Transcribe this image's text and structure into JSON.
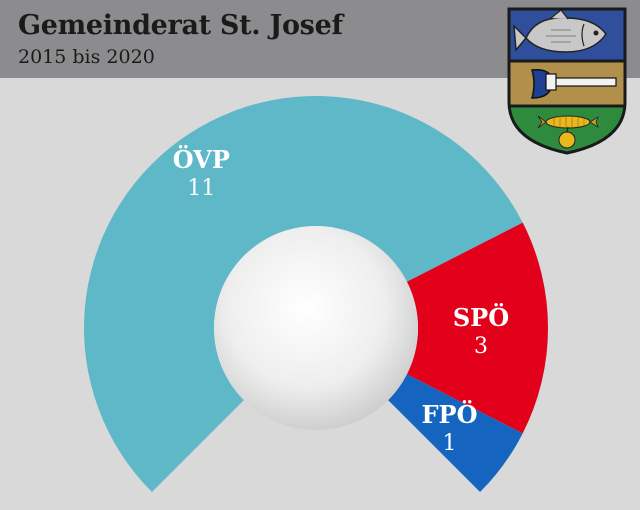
{
  "header": {
    "title": "Gemeinderat St. Josef",
    "subtitle": "2015 bis 2020"
  },
  "colors": {
    "background": "#d9d9d9",
    "header": "#8c8c8e",
    "ovp": "#5eb8c8",
    "spo": "#e3001b",
    "fpo": "#1565c0"
  },
  "crest": {
    "icons": [
      "fish-icon",
      "axe-icon",
      "corn-icon",
      "apple-icon"
    ],
    "colors": {
      "top": "#2f4f9c",
      "middle": "#b0904a",
      "bottom": "#2e8b3e",
      "border": "#1a1a1a"
    }
  },
  "chart_data": {
    "type": "pie",
    "title": "Gemeinderat St. Josef",
    "subtitle": "2015 bis 2020",
    "total_seats": 15,
    "series": [
      {
        "name": "ÖVP",
        "value": 11,
        "label": "11",
        "color": "#5eb8c8"
      },
      {
        "name": "SPÖ",
        "value": 3,
        "label": "3",
        "color": "#e3001b"
      },
      {
        "name": "FPÖ",
        "value": 1,
        "label": "1",
        "color": "#1565c0"
      }
    ]
  }
}
